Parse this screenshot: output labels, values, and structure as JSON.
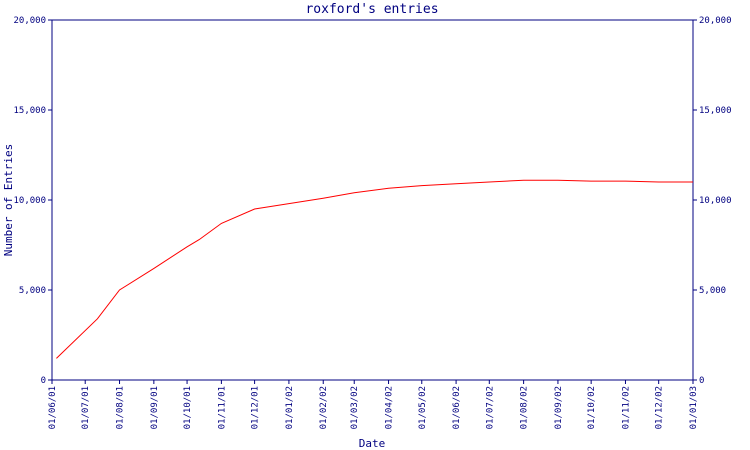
{
  "chart_data": {
    "type": "line",
    "title": "roxford's entries",
    "xlabel": "Date",
    "ylabel": "Number of Entries",
    "ylim": [
      0,
      20000
    ],
    "y_ticks": [
      0,
      5000,
      10000,
      15000,
      20000
    ],
    "y_tick_labels": [
      "0",
      "5,000",
      "10,000",
      "15,000",
      "20,000"
    ],
    "x_tick_labels": [
      "01/06/01",
      "01/07/01",
      "01/08/01",
      "01/09/01",
      "01/10/01",
      "01/11/01",
      "01/12/01",
      "01/01/02",
      "01/02/02",
      "01/03/02",
      "01/04/02",
      "01/05/02",
      "01/06/02",
      "01/07/02",
      "01/08/02",
      "01/09/02",
      "01/10/02",
      "01/11/02",
      "01/12/02",
      "01/01/03"
    ],
    "grid": false,
    "line_color": "#ff0000",
    "axis_color": "#000080",
    "series": [
      {
        "x": [
          "2001-06-05",
          "2001-07-12",
          "2001-08-01",
          "2001-09-01",
          "2001-10-01",
          "2001-10-12",
          "2001-11-01",
          "2001-12-01",
          "2002-01-01",
          "2002-02-01",
          "2002-03-01",
          "2002-04-01",
          "2002-05-01",
          "2002-06-01",
          "2002-07-01",
          "2002-08-01",
          "2002-09-01",
          "2002-10-01",
          "2002-11-01",
          "2002-12-01",
          "2003-01-01"
        ],
        "values": [
          1200,
          3400,
          5000,
          6200,
          7400,
          7800,
          8700,
          9500,
          9800,
          10100,
          10400,
          10650,
          10800,
          10900,
          11000,
          11100,
          11100,
          11050,
          11050,
          11000,
          11000
        ]
      }
    ]
  }
}
